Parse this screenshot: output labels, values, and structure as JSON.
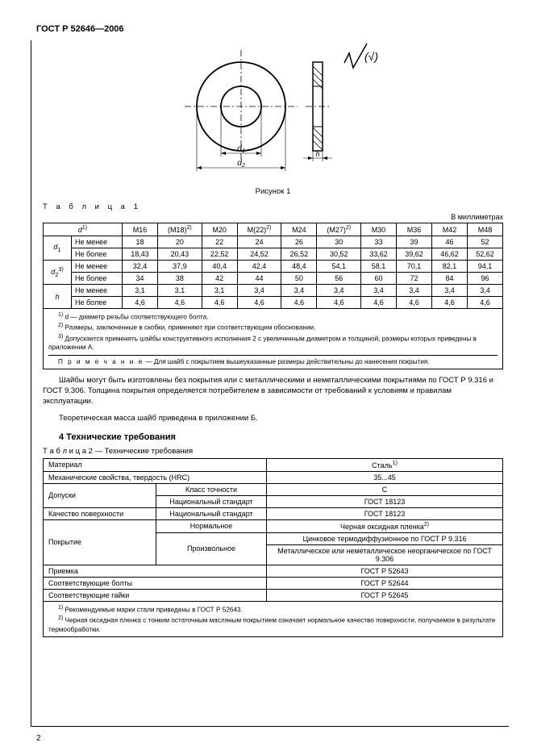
{
  "document_header": "ГОСТ Р 52646—2006",
  "figure": {
    "caption": "Рисунок 1",
    "ra_symbol": "√(√)"
  },
  "table1": {
    "label": "Т а б л и ц а  1",
    "units": "В миллиметрах",
    "header_d": "d",
    "header_d_sup": "1)",
    "cols": [
      "M16",
      "(M18)",
      "M20",
      "M(22)",
      "M24",
      "(M27)",
      "M30",
      "M36",
      "M42",
      "M48"
    ],
    "cols_sup": [
      "",
      "2)",
      "",
      "2)",
      "",
      "2)",
      "",
      "",
      "",
      ""
    ],
    "rowgroups": [
      {
        "param": "d",
        "param_sub": "1",
        "param_sup": "",
        "rows": [
          {
            "label": "Не менее",
            "vals": [
              "18",
              "20",
              "22",
              "24",
              "26",
              "30",
              "33",
              "39",
              "46",
              "52"
            ]
          },
          {
            "label": "Не более",
            "vals": [
              "18,43",
              "20,43",
              "22,52",
              "24,52",
              "26,52",
              "30,52",
              "33,62",
              "39,62",
              "46,62",
              "52,62"
            ]
          }
        ]
      },
      {
        "param": "d",
        "param_sub": "2",
        "param_sup": "3)",
        "rows": [
          {
            "label": "Не менее",
            "vals": [
              "32,4",
              "37,9",
              "40,4",
              "42,4",
              "48,4",
              "54,1",
              "58,1",
              "70,1",
              "82,1",
              "94,1"
            ]
          },
          {
            "label": "Не более",
            "vals": [
              "34",
              "38",
              "42",
              "44",
              "50",
              "56",
              "60",
              "72",
              "84",
              "96"
            ]
          }
        ]
      },
      {
        "param": "h",
        "param_sub": "",
        "param_sup": "",
        "rows": [
          {
            "label": "Не менее",
            "vals": [
              "3,1",
              "3,1",
              "3,1",
              "3,4",
              "3,4",
              "3,4",
              "3,4",
              "3,4",
              "3,4",
              "3,4"
            ]
          },
          {
            "label": "Не более",
            "vals": [
              "4,6",
              "4,6",
              "4,6",
              "4,6",
              "4,6",
              "4,6",
              "4,6",
              "4,6",
              "4,6",
              "4,6"
            ]
          }
        ]
      }
    ],
    "footnotes": [
      "1) d — диаметр резьбы соответствующего болта.",
      "2) Размеры, заключенные в скобки, применяют при соответствующем обосновании.",
      "3) Допускается применять шайбы конструктивного исполнения 2 с увеличенным диаметром и толщиной, размеры которых приведены в приложении А."
    ],
    "note_prefix": "П р и м е ч а н и е",
    "note": " — Для шайб с покрытием вышеуказанные размеры действительны до нанесения покрытия."
  },
  "paragraphs": [
    "Шайбы могут быть изготовлены без покрытия или с металлическими и неметаллическими покрытиями по ГОСТ Р 9.316 и ГОСТ 9.306. Толщина покрытия определяется потребителем в зависимости от требований к условиям и правилам эксплуатации.",
    "Теоретическая масса шайб приведена в приложении Б."
  ],
  "section4": {
    "heading": "4  Технические требования",
    "table_label": "Т а б л и ц а  2 — Технические требования"
  },
  "table2": {
    "rows": [
      {
        "c1": "Материал",
        "c1span": 2,
        "c2": "Сталь",
        "c2sup": "1)"
      },
      {
        "c1": "Механические свойства, твердость (HRC)",
        "c1span": 2,
        "c2": "35...45"
      },
      {
        "c1": "Допуски",
        "mid": "Класс точности",
        "c2": "C"
      },
      {
        "c1cont": true,
        "mid": "Национальный стандарт",
        "c2": "ГОСТ 18123"
      },
      {
        "c1": "Качество поверхности",
        "mid": "Национальный стандарт",
        "c2": "ГОСТ 18123"
      },
      {
        "c1": "Покрытие",
        "mid": "Нормальное",
        "c2": "Черная оксидная пленка",
        "c2sup": "2)"
      },
      {
        "c1cont": true,
        "mid": "Произвольное",
        "c2": "Цинковое термодиффузионное по ГОСТ Р 9.316"
      },
      {
        "c1cont": true,
        "midcont": true,
        "c2": "Металлическое или неметаллическое неорганическое по ГОСТ 9.306"
      },
      {
        "c1": "Приемка",
        "c1span": 2,
        "c2": "ГОСТ Р 52643"
      },
      {
        "c1": "Соответствующие болты",
        "c1span": 2,
        "c2": "ГОСТ Р 52644"
      },
      {
        "c1": "Соответствующие гайки",
        "c1span": 2,
        "c2": "ГОСТ Р 52645"
      }
    ],
    "footnotes": [
      "1) Рекомендуемые марки стали приведены в ГОСТ Р 52643.",
      "2) Черная оксидная пленка с тонким остаточным масляным покрытием означает нормальное качество поверхности, получаемое в результате термообработки."
    ]
  },
  "page_number": "2"
}
